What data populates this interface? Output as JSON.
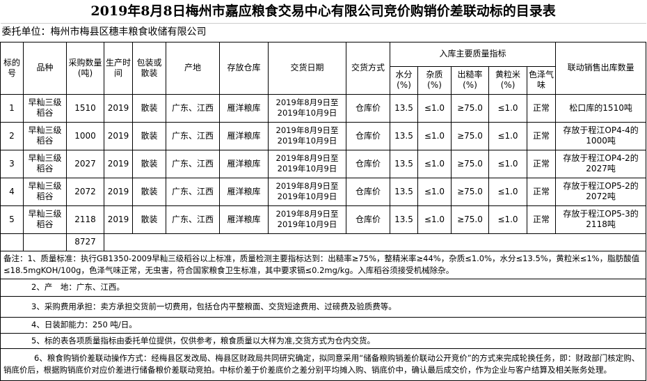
{
  "title": "2019年8月8日梅州市嘉应粮食交易中心有限公司竞价购销价差联动标的目录表",
  "consignor": "委托单位：梅州市梅县区穗丰粮食收储有限公司",
  "headers": {
    "no": "标的号",
    "variety": "品种",
    "quantity": "采购数量(吨)",
    "year": "生产时间",
    "packing": "包装或散装",
    "origin": "产地",
    "warehouse": "存放仓库",
    "delivery_date": "交货日期",
    "delivery_method": "交货方式",
    "quality_group": "入库主要质量指标",
    "moisture": "水分(%)",
    "impurity": "杂质(%)",
    "husking": "出糙率(%)",
    "yellow": "黄粒米(%)",
    "color": "色泽气味",
    "linked_sale": "联动销售出库数量"
  },
  "rows": [
    {
      "no": "1",
      "variety": "早籼三级稻谷",
      "quantity": "1510",
      "year": "2019",
      "packing": "散装",
      "origin": "广东、江西",
      "warehouse": "雁洋粮库",
      "delivery_date": "2019年8月9日至2019年10月9日",
      "delivery_method": "仓库价",
      "moisture": "13.5",
      "impurity": "≤1.0",
      "husking": "≥75.0",
      "yellow": "≤1.0",
      "color": "正常",
      "linked_sale": "松口库的1510吨"
    },
    {
      "no": "2",
      "variety": "早籼三级稻谷",
      "quantity": "1000",
      "year": "2019",
      "packing": "散装",
      "origin": "广东、江西",
      "warehouse": "雁洋粮库",
      "delivery_date": "2019年8月9日至2019年10月9日",
      "delivery_method": "仓库价",
      "moisture": "13.5",
      "impurity": "≤1.0",
      "husking": "≥75.0",
      "yellow": "≤1.0",
      "color": "正常",
      "linked_sale": "存放于程江OP4-4的1000吨"
    },
    {
      "no": "3",
      "variety": "早籼三级稻谷",
      "quantity": "2027",
      "year": "2019",
      "packing": "散装",
      "origin": "广东、江西",
      "warehouse": "雁洋粮库",
      "delivery_date": "2019年8月9日至2019年10月9日",
      "delivery_method": "仓库价",
      "moisture": "13.5",
      "impurity": "≤1.0",
      "husking": "≥75.0",
      "yellow": "≤1.0",
      "color": "正常",
      "linked_sale": "存放于程江OP4-2的2027吨"
    },
    {
      "no": "4",
      "variety": "早籼三级稻谷",
      "quantity": "2072",
      "year": "2019",
      "packing": "散装",
      "origin": "广东、江西",
      "warehouse": "雁洋粮库",
      "delivery_date": "2019年8月9日至2019年10月9日",
      "delivery_method": "仓库价",
      "moisture": "13.5",
      "impurity": "≤1.0",
      "husking": "≥75.0",
      "yellow": "≤1.0",
      "color": "正常",
      "linked_sale": "存放于程江OP5-2的2072吨"
    },
    {
      "no": "5",
      "variety": "早籼三级稻谷",
      "quantity": "2118",
      "year": "2019",
      "packing": "散装",
      "origin": "广东、江西",
      "warehouse": "雁洋粮库",
      "delivery_date": "2019年8月9日至2019年10月9日",
      "delivery_method": "仓库价",
      "moisture": "13.5",
      "impurity": "≤1.0",
      "husking": "≥75.0",
      "yellow": "≤1.0",
      "color": "正常",
      "linked_sale": "存放于程江OP5-3的2118吨"
    }
  ],
  "total_quantity": "8727",
  "notes": [
    "备注：1、质量标准：执行GB1350-2009早籼三级稻谷以上标准，质量检测主要指标达到：出糙率≥75%，整精米率≥44%，杂质≤1.0%，水分≤13.5%，黄粒米≤1%，脂肪酸值≤18.5mgKOH/100g，色泽气味正常，无虫害，符合国家粮食卫生标准，其中要求镉≤0.2mg/kg。入库稻谷须接受机械除杂。",
    "2、产　地：广东、江西。",
    "3、采购费用承担：卖方承担交货前一切费用，包括仓内平整粮面、交货短途费用、过磅费及验质费等。",
    "4、日装卸能力：250 吨/日。",
    "5、标的表各项质量指标由委托单位提供，仅供参考，粮食质量以大样为准,交货方式为仓内交货。",
    "6、粮食购销价差联动操作方式：经梅县区发改局、梅县区财政局共同研究确定，拟同意采用“储备粮购销差价联动公开竞价”的方式来完成轮换任务，即：财政部门核定购、销底价后，根据购销底价对应价差进行储备粮价差联动竞拍。中标价差于价差底价之差分别平均摊入购、销底价中，确认最后成交价，作为企业与客户结算及相关账务处理。"
  ]
}
